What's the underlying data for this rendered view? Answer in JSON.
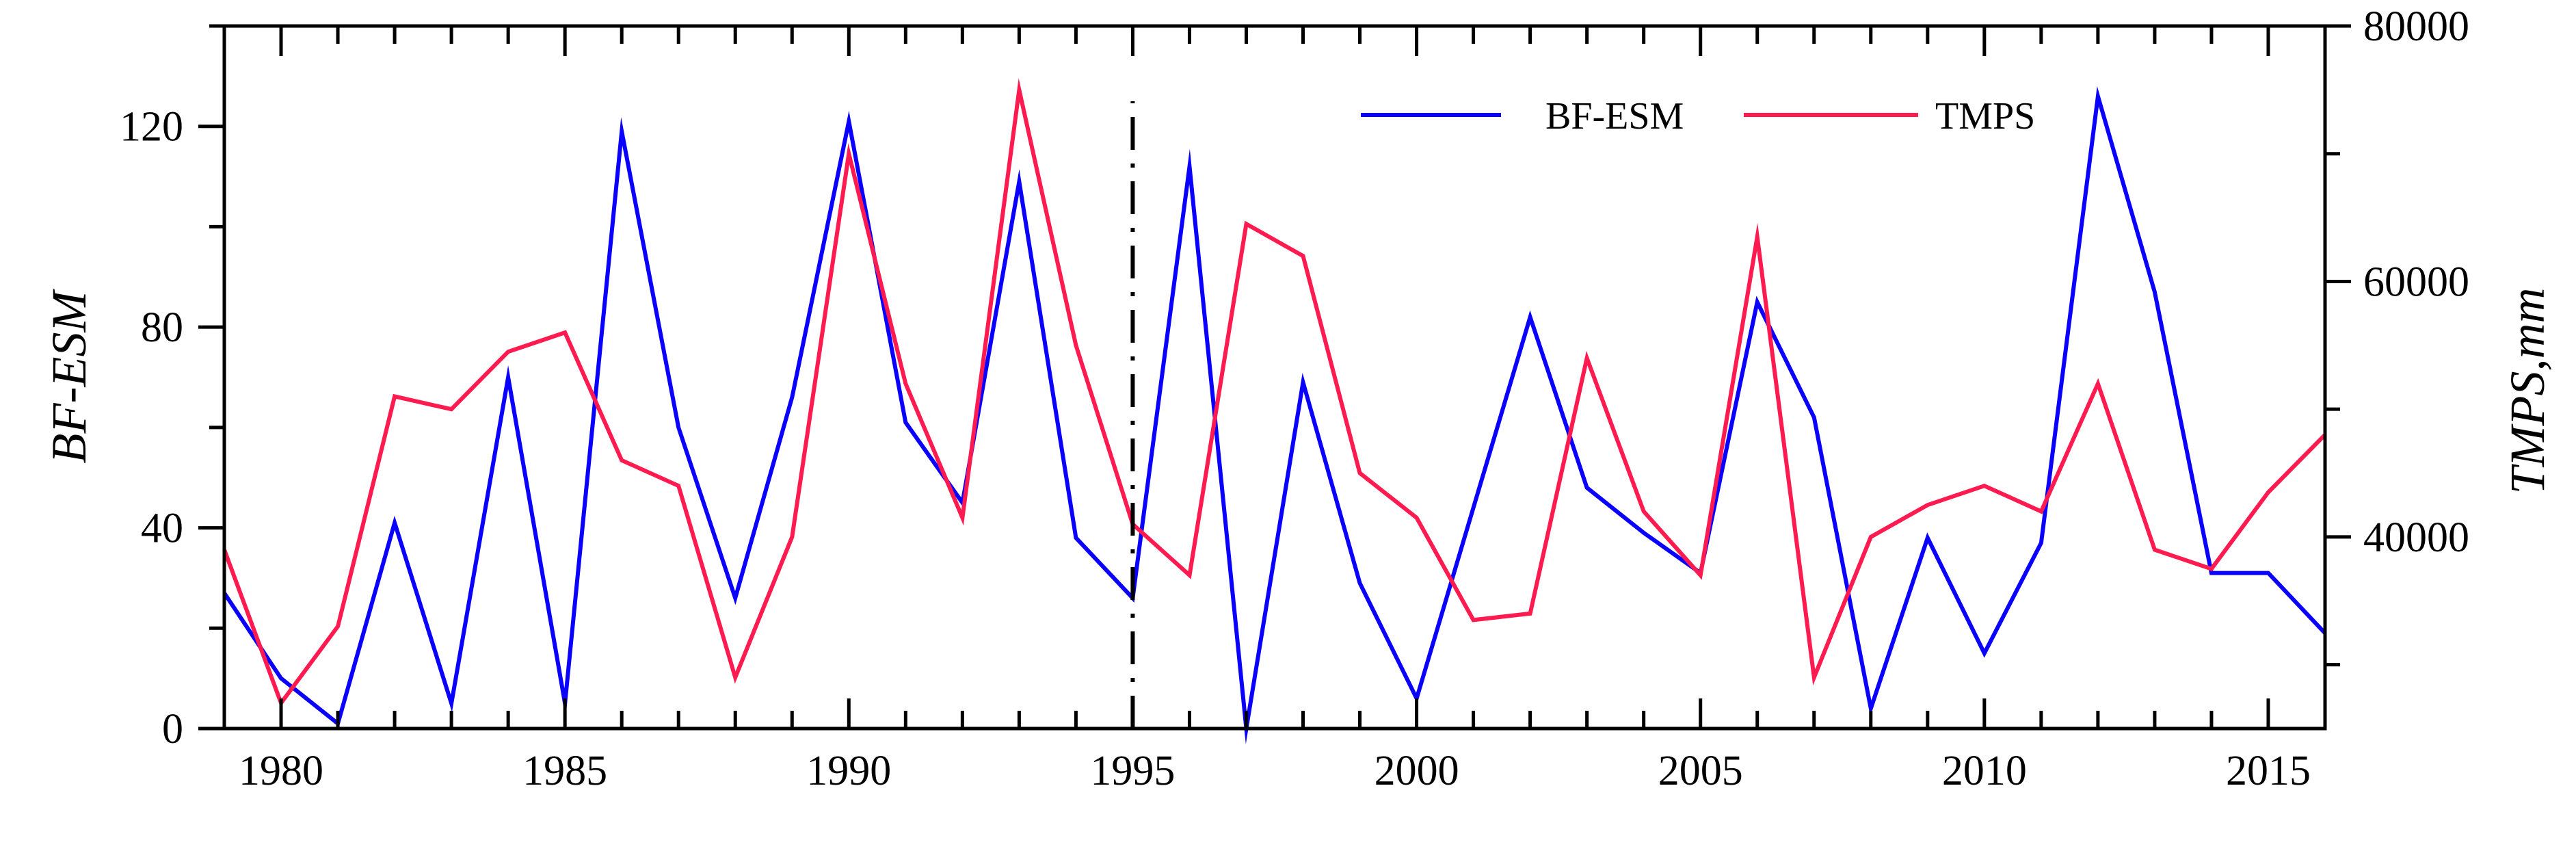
{
  "chart_data": {
    "type": "line",
    "title": "",
    "xlabel": "",
    "ylabel": "BF-ESM",
    "y2label": "TMPS,mm",
    "xlim": [
      1979,
      2016
    ],
    "ylim": [
      0,
      140
    ],
    "y2lim": [
      25000,
      80000
    ],
    "x_ticks": [
      1980,
      1985,
      1990,
      1995,
      2000,
      2005,
      2010,
      2015
    ],
    "y_ticks": [
      0,
      40,
      80,
      120
    ],
    "y2_ticks": [
      40000,
      60000,
      80000
    ],
    "grid": false,
    "legend_position": "top-right",
    "annotations": [
      {
        "type": "vertical-dash-dot-line",
        "x": 1995
      }
    ],
    "x": [
      1979,
      1980,
      1981,
      1982,
      1983,
      1984,
      1985,
      1986,
      1987,
      1988,
      1989,
      1990,
      1991,
      1992,
      1993,
      1994,
      1995,
      1996,
      1997,
      1998,
      1999,
      2000,
      2001,
      2002,
      2003,
      2004,
      2005,
      2006,
      2007,
      2008,
      2009,
      2010,
      2011,
      2012,
      2013,
      2014,
      2015,
      2016
    ],
    "series": [
      {
        "name": "BF-ESM",
        "axis": "left",
        "color": "#0a00ff",
        "values": [
          27,
          10,
          1,
          41,
          5,
          70,
          5,
          119,
          60,
          26,
          66,
          121,
          61,
          45,
          109,
          38,
          26,
          112,
          0,
          69,
          29,
          6,
          44,
          82,
          48,
          39,
          31,
          85,
          62,
          4,
          38,
          15,
          37,
          126,
          87,
          31,
          31,
          19
        ]
      },
      {
        "name": "TMPS",
        "axis": "right",
        "color": "#ff1a4f",
        "values": [
          39000,
          27000,
          33000,
          51000,
          50000,
          54500,
          56000,
          46000,
          44000,
          29000,
          40000,
          70000,
          52000,
          41500,
          75000,
          55000,
          41000,
          37000,
          64500,
          62000,
          45000,
          41500,
          33500,
          34000,
          54000,
          42000,
          37000,
          63500,
          29000,
          40000,
          42500,
          44000,
          42000,
          52000,
          39000,
          37500,
          43500,
          48000
        ]
      }
    ]
  }
}
